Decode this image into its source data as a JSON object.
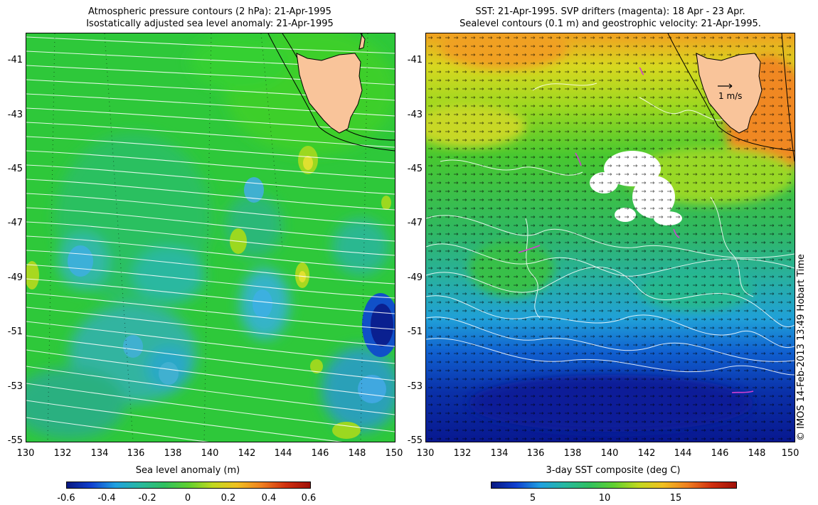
{
  "left_panel": {
    "title_line1": "Atmospheric pressure contours (2 hPa): 21-Apr-1995",
    "title_line2": "Isostatically adjusted sea level anomaly: 21-Apr-1995",
    "y_ticks": [
      "-41",
      "-43",
      "-45",
      "-47",
      "-49",
      "-51",
      "-53",
      "-55"
    ],
    "x_ticks": [
      "130",
      "132",
      "134",
      "136",
      "138",
      "140",
      "142",
      "144",
      "146",
      "148",
      "150"
    ],
    "colorbar_title": "Sea level anomaly (m)",
    "colorbar_ticks": [
      "-0.6",
      "-0.4",
      "-0.2",
      "0",
      "0.2",
      "0.4",
      "0.6"
    ]
  },
  "right_panel": {
    "title_line1": "SST: 21-Apr-1995. SVP drifters (magenta): 18 Apr - 23 Apr.",
    "title_line2": "Sealevel contours (0.1 m) and geostrophic velocity: 21-Apr-1995.",
    "y_ticks": [
      "-41",
      "-43",
      "-45",
      "-47",
      "-49",
      "-51",
      "-53",
      "-55"
    ],
    "x_ticks": [
      "130",
      "132",
      "134",
      "136",
      "138",
      "140",
      "142",
      "144",
      "146",
      "148",
      "150"
    ],
    "scale_label": "1 m/s",
    "colorbar_title": "3-day SST composite (deg C)",
    "colorbar_ticks": [
      "5",
      "10",
      "15"
    ]
  },
  "credit": "© IMOS 14-Feb-2013 13:49 Hobart Time",
  "colors": {
    "land": "#f9c49a",
    "sla_base": "#2ec83a",
    "drifter": "#d040d0"
  }
}
